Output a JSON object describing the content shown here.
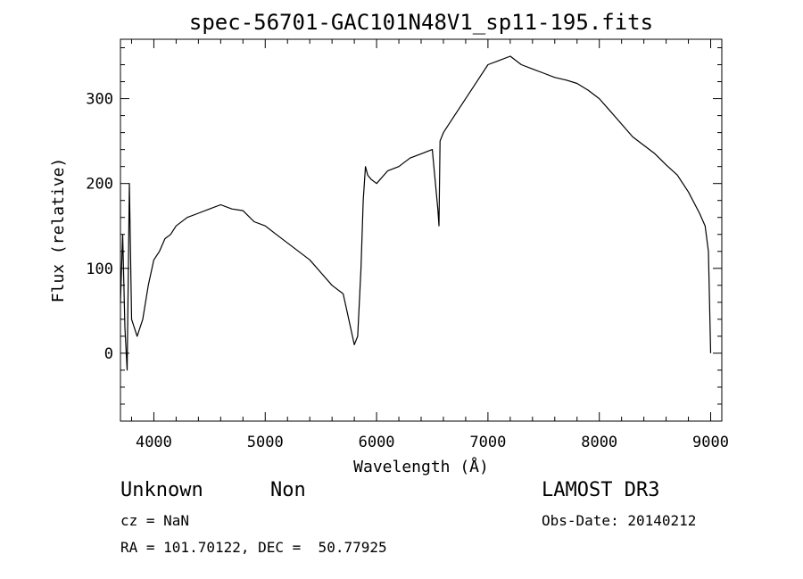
{
  "chart_data": {
    "type": "line",
    "title": "spec-56701-GAC101N48V1_sp11-195.fits",
    "xlabel": "Wavelength (Å)",
    "ylabel": "Flux (relative)",
    "xlim": [
      3700,
      9100
    ],
    "ylim": [
      -80,
      370
    ],
    "xticks": [
      4000,
      5000,
      6000,
      7000,
      8000,
      9000
    ],
    "yticks": [
      0,
      100,
      200,
      300
    ],
    "grid": false,
    "series": [
      {
        "x": [
          3700,
          3720,
          3740,
          3760,
          3780,
          3800,
          3850,
          3900,
          3950,
          4000,
          4050,
          4100,
          4150,
          4200,
          4300,
          4400,
          4500,
          4600,
          4700,
          4800,
          4900,
          5000,
          5100,
          5200,
          5300,
          5400,
          5500,
          5600,
          5700,
          5750,
          5800,
          5830,
          5860,
          5880,
          5900,
          5920,
          5950,
          6000,
          6100,
          6200,
          6300,
          6400,
          6500,
          6550,
          6560,
          6570,
          6600,
          6700,
          6800,
          6900,
          7000,
          7100,
          7200,
          7300,
          7400,
          7500,
          7600,
          7700,
          7800,
          7900,
          8000,
          8100,
          8200,
          8300,
          8400,
          8500,
          8600,
          8700,
          8800,
          8900,
          8950,
          8980,
          9000
        ],
        "values": [
          60,
          140,
          30,
          -20,
          200,
          40,
          20,
          40,
          80,
          110,
          120,
          135,
          140,
          150,
          160,
          165,
          170,
          175,
          170,
          168,
          155,
          150,
          140,
          130,
          120,
          110,
          95,
          80,
          70,
          40,
          10,
          20,
          100,
          180,
          220,
          210,
          205,
          200,
          215,
          220,
          230,
          235,
          240,
          170,
          150,
          250,
          260,
          280,
          300,
          320,
          340,
          345,
          350,
          340,
          335,
          330,
          325,
          322,
          318,
          310,
          300,
          285,
          270,
          255,
          245,
          235,
          222,
          210,
          190,
          165,
          150,
          120,
          0
        ]
      }
    ]
  },
  "footer": {
    "object_type": "Unknown",
    "object_subtype": "Non",
    "survey": "LAMOST DR3",
    "cz_text": "cz = NaN",
    "obs_date_text": "Obs-Date: 20140212",
    "coords_text": "RA = 101.70122, DEC =  50.77925"
  }
}
